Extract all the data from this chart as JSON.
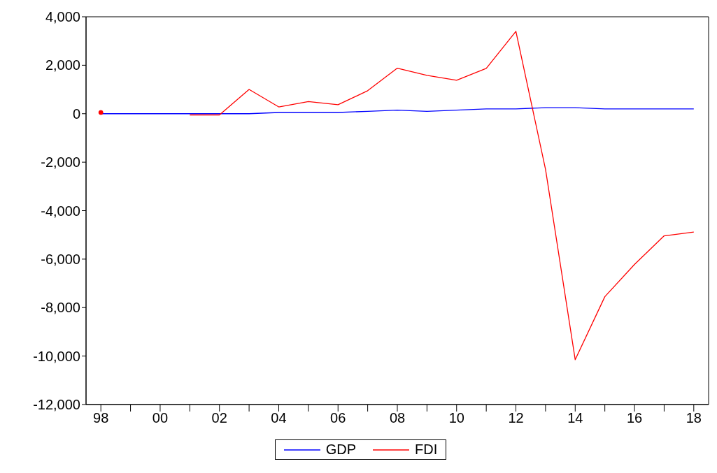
{
  "chart_data": {
    "type": "line",
    "categories": [
      "98",
      null,
      "00",
      null,
      "02",
      null,
      "04",
      null,
      "06",
      null,
      "08",
      null,
      "10",
      null,
      "12",
      null,
      "14",
      null,
      "16",
      null,
      "18"
    ],
    "series": [
      {
        "name": "GDP",
        "color": "#0000ff",
        "values": [
          0,
          0,
          0,
          0,
          0,
          0,
          50,
          50,
          50,
          100,
          150,
          100,
          150,
          200,
          200,
          250,
          250,
          200,
          200,
          200,
          200
        ]
      },
      {
        "name": "FDI",
        "color": "#ff0000",
        "values": [
          50,
          null,
          null,
          -50,
          -50,
          1000,
          280,
          500,
          370,
          950,
          1880,
          1580,
          1380,
          1870,
          3400,
          -2300,
          -10150,
          -7550,
          -6220,
          -5040,
          -4880
        ]
      }
    ],
    "ylim": [
      -12000,
      4000
    ],
    "yticks": [
      {
        "value": -12000,
        "label": "-12,000"
      },
      {
        "value": -10000,
        "label": "-10,000"
      },
      {
        "value": -8000,
        "label": "-8,000"
      },
      {
        "value": -6000,
        "label": "-6,000"
      },
      {
        "value": -4000,
        "label": "-4,000"
      },
      {
        "value": -2000,
        "label": "-2,000"
      },
      0,
      {
        "value": 2000,
        "label": "2,000"
      },
      {
        "value": 4000,
        "label": "4,000"
      }
    ],
    "legend": "bottom",
    "marker": "none",
    "line_style": "solid"
  }
}
